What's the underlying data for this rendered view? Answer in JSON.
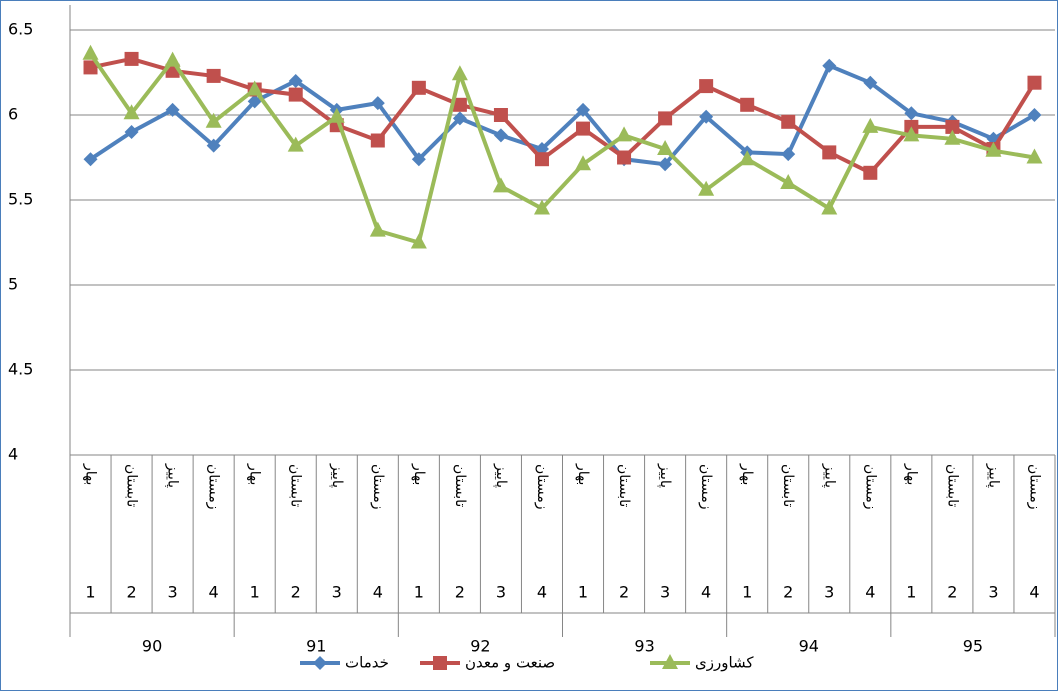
{
  "chart_data": {
    "type": "line",
    "categories": [
      "بهار",
      "تابستان",
      "پاییز",
      "زمستان",
      "بهار",
      "تابستان",
      "پاییز",
      "زمستان",
      "بهار",
      "تابستان",
      "پاییز",
      "زمستان",
      "بهار",
      "تابستان",
      "پاییز",
      "زمستان",
      "بهار",
      "تابستان",
      "پاییز",
      "زمستان",
      "بهار",
      "تابستان",
      "پاییز",
      "زمستان"
    ],
    "quarters": [
      1,
      2,
      3,
      4,
      1,
      2,
      3,
      4,
      1,
      2,
      3,
      4,
      1,
      2,
      3,
      4,
      1,
      2,
      3,
      4,
      1,
      2,
      3,
      4
    ],
    "years": [
      90,
      91,
      92,
      93,
      94,
      95
    ],
    "series": [
      {
        "name": "خدمات",
        "color": "#4f81bd",
        "marker": "diamond",
        "values": [
          5.74,
          5.9,
          6.03,
          5.82,
          6.08,
          6.2,
          6.03,
          6.07,
          5.74,
          5.98,
          5.88,
          5.8,
          6.03,
          5.74,
          5.71,
          5.99,
          5.78,
          5.77,
          6.29,
          6.19,
          6.01,
          5.96,
          5.86,
          6.0
        ]
      },
      {
        "name": "صنعت و معدن",
        "color": "#c0504d",
        "marker": "square",
        "values": [
          6.28,
          6.33,
          6.26,
          6.23,
          6.15,
          6.12,
          5.94,
          5.85,
          6.16,
          6.06,
          6.0,
          5.74,
          5.92,
          5.75,
          5.98,
          6.17,
          6.06,
          5.96,
          5.78,
          5.66,
          5.93,
          5.93,
          5.8,
          6.19
        ]
      },
      {
        "name": "کشاورزی",
        "color": "#9bbb59",
        "marker": "triangle",
        "values": [
          6.36,
          6.01,
          6.32,
          5.96,
          6.15,
          5.82,
          5.99,
          5.32,
          5.25,
          6.24,
          5.58,
          5.45,
          5.71,
          5.88,
          5.8,
          5.56,
          5.74,
          5.6,
          5.45,
          5.93,
          5.88,
          5.86,
          5.79,
          5.75
        ]
      }
    ],
    "ylim": [
      4,
      6.5
    ],
    "yticks": [
      4,
      4.5,
      5,
      5.5,
      6,
      {
        "value": 6.5,
        "label": "6.5"
      }
    ],
    "grid": true,
    "legend": "bottom"
  }
}
